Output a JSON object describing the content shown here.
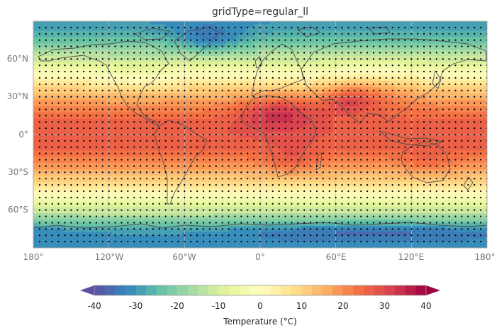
{
  "title": "gridType=regular_ll",
  "lat_ticks": [
    "60°N",
    "30°N",
    "0°",
    "30°S",
    "60°S"
  ],
  "lon_ticks": [
    "180°",
    "120°W",
    "60°W",
    "0°",
    "60°E",
    "120°E",
    "180°"
  ],
  "colorbar": {
    "label": "Temperature (°C)",
    "min": -40,
    "max": 40,
    "step": 2.5,
    "ticks": [
      "-40",
      "-30",
      "-20",
      "-10",
      "0",
      "10",
      "20",
      "30",
      "40"
    ],
    "extend": "both",
    "colormap": "Spectral_r",
    "colors": [
      "#5e4fa2",
      "#3288bd",
      "#66c2a5",
      "#abdda4",
      "#e6f598",
      "#ffffbf",
      "#fee08b",
      "#fdae61",
      "#f46d43",
      "#d53e4f",
      "#9e0142"
    ]
  },
  "map": {
    "projection": "PlateCarree",
    "lon_range": [
      -180,
      180
    ],
    "lat_range": [
      -90,
      90
    ],
    "grid_spacing_deg": 5,
    "grid_points_shown": true,
    "coastlines": true,
    "gridlines": true,
    "gridline_color": "#bbbbbb",
    "coastline_color": "#4d4d4d",
    "point_color": "#000000"
  }
}
